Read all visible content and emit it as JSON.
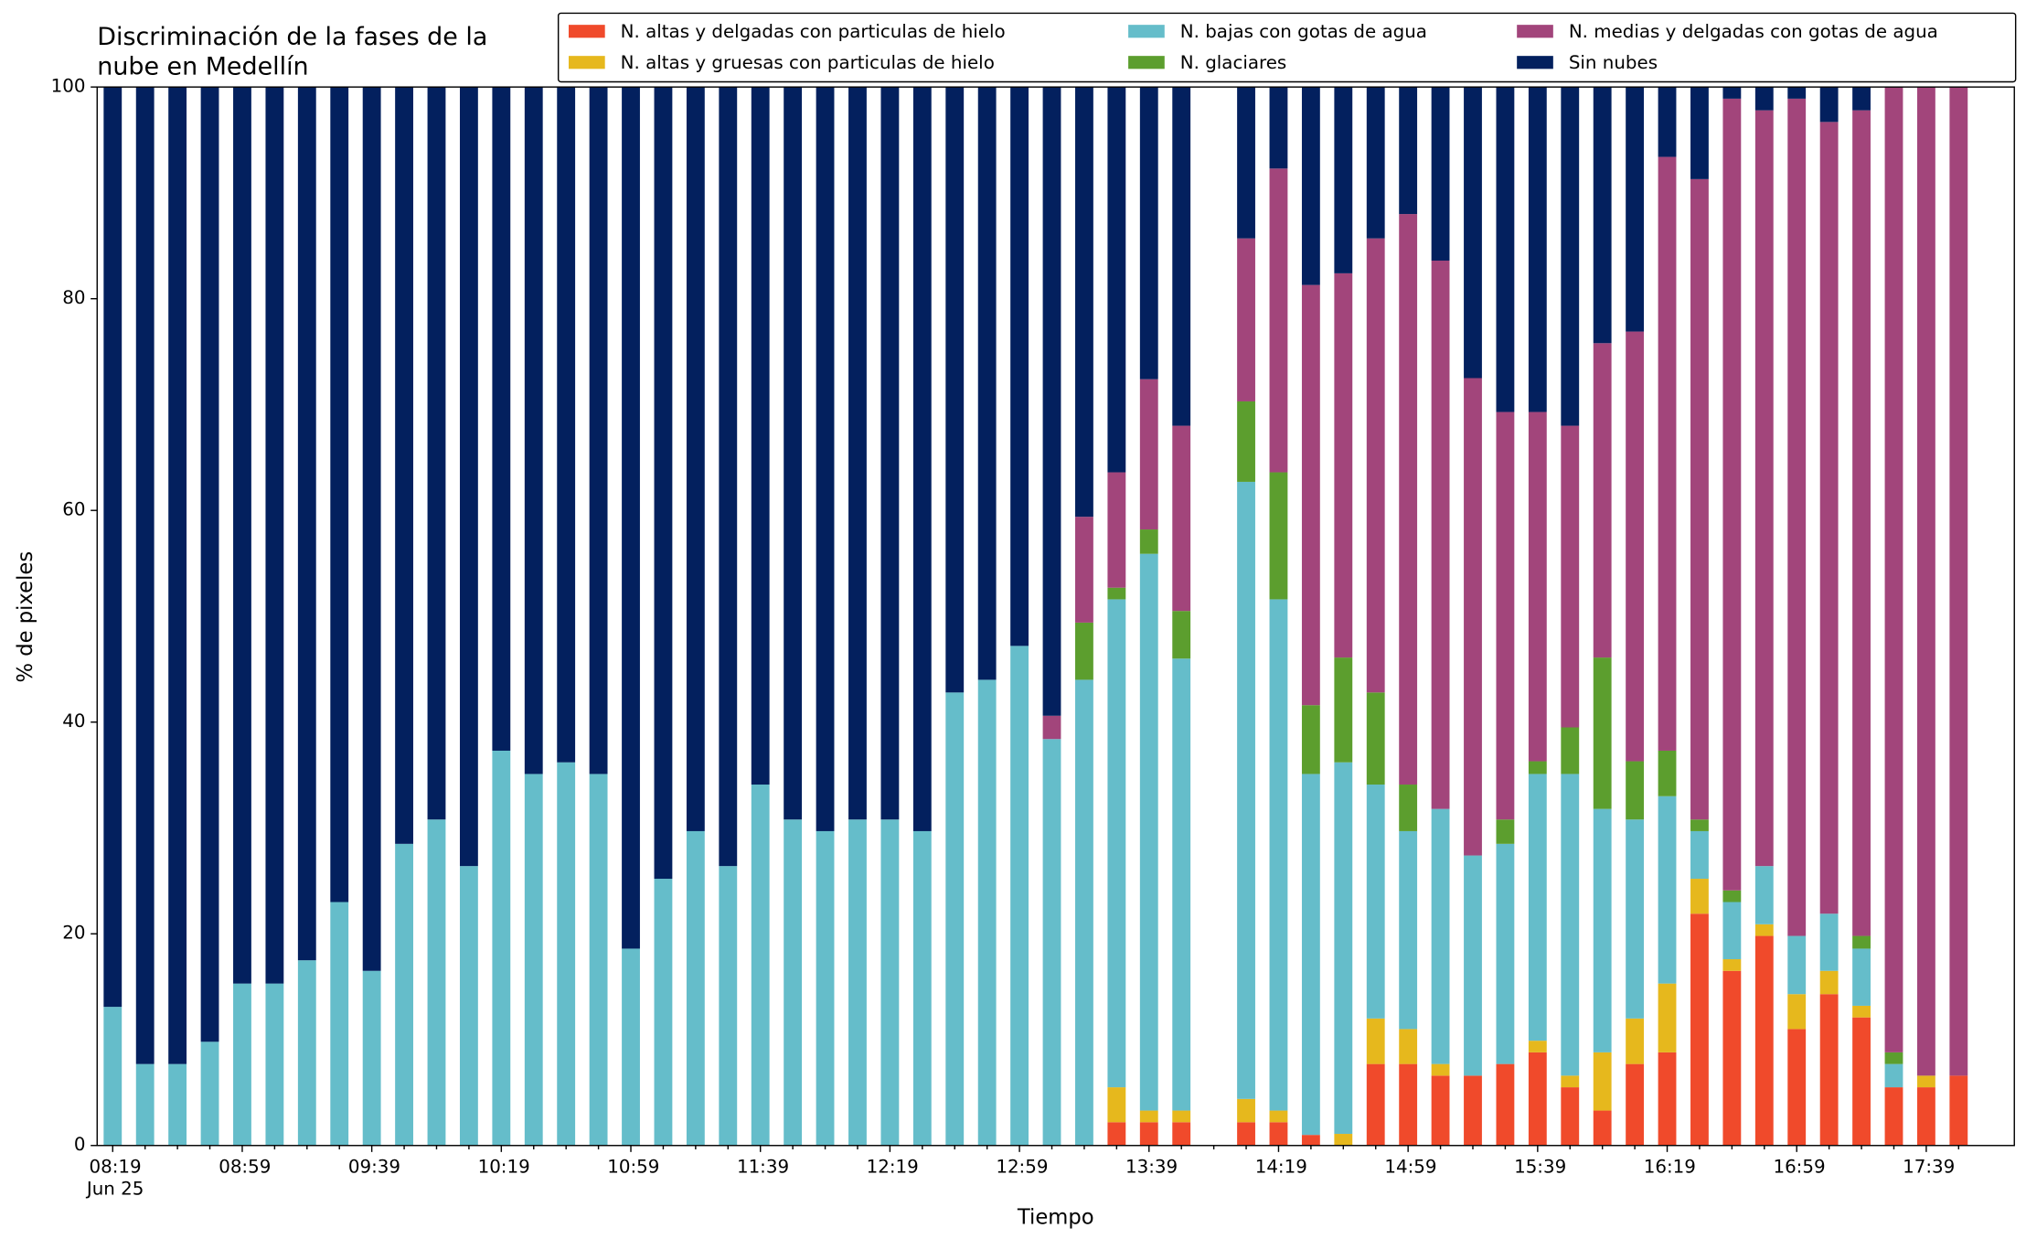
{
  "chart_data": {
    "type": "stacked_bar",
    "title": [
      "Discriminación de la fases de la",
      "nube en Medellín"
    ],
    "xlabel": "Tiempo",
    "ylabel": "% de pixeles",
    "x_date_label": "Jun 25",
    "categories": [
      "08:19",
      null,
      null,
      null,
      "08:59",
      null,
      null,
      null,
      "09:39",
      null,
      null,
      null,
      "10:19",
      null,
      null,
      null,
      "10:59",
      null,
      null,
      null,
      "11:39",
      null,
      null,
      null,
      "12:19",
      null,
      null,
      null,
      "12:59",
      null,
      null,
      null,
      "13:39",
      null,
      null,
      null,
      "14:19",
      null,
      null,
      null,
      "14:59",
      null,
      null,
      null,
      "15:39",
      null,
      null,
      null,
      "16:19",
      null,
      null,
      null,
      "16:59",
      null,
      null,
      null,
      "17:39",
      null
    ],
    "ylim": [
      0,
      100
    ],
    "yticks": [
      0,
      20,
      40,
      60,
      80,
      100
    ],
    "legend": "upper right",
    "series": [
      {
        "name": "N. altas y delgadas con particulas de hielo",
        "color": "#f04a2b",
        "values": [
          0,
          0,
          0,
          0,
          0,
          0,
          0,
          0,
          0,
          0,
          0,
          0,
          0,
          0,
          0,
          0,
          0,
          0,
          0,
          0,
          0,
          0,
          0,
          0,
          0,
          0,
          0,
          0,
          0,
          0,
          0,
          2.2,
          2.2,
          2.2,
          null,
          2.2,
          2.2,
          1.0,
          0,
          7.7,
          7.7,
          6.6,
          6.6,
          7.7,
          8.8,
          5.5,
          3.3,
          7.7,
          8.8,
          21.9,
          16.5,
          19.8,
          11.0,
          14.3,
          12.1,
          5.5,
          5.5,
          6.6
        ]
      },
      {
        "name": "N. altas y gruesas con particulas de hielo",
        "color": "#e6b81d",
        "values": [
          0,
          0,
          0,
          0,
          0,
          0,
          0,
          0,
          0,
          0,
          0,
          0,
          0,
          0,
          0,
          0,
          0,
          0,
          0,
          0,
          0,
          0,
          0,
          0,
          0,
          0,
          0,
          0,
          0,
          0,
          0,
          3.3,
          1.1,
          1.1,
          null,
          2.2,
          1.1,
          0,
          1.1,
          4.3,
          3.3,
          1.1,
          0,
          0,
          1.1,
          1.1,
          5.5,
          4.3,
          6.5,
          3.3,
          1.1,
          1.1,
          3.3,
          2.2,
          1.1,
          0,
          1.1,
          0
        ]
      },
      {
        "name": "N. bajas con gotas de agua",
        "color": "#65bdca",
        "values": [
          13.1,
          7.7,
          7.7,
          9.8,
          15.3,
          15.3,
          17.5,
          23.0,
          16.5,
          28.5,
          30.8,
          26.4,
          37.3,
          35.1,
          36.2,
          35.1,
          18.6,
          25.2,
          29.7,
          26.4,
          34.1,
          30.8,
          29.7,
          30.8,
          30.8,
          29.7,
          42.8,
          44.0,
          47.2,
          38.4,
          44.0,
          46.1,
          52.6,
          42.7,
          null,
          58.3,
          48.3,
          34.1,
          35.1,
          22.1,
          18.7,
          24.1,
          20.8,
          20.8,
          25.2,
          28.5,
          23.0,
          18.8,
          17.7,
          4.5,
          5.4,
          5.5,
          5.5,
          5.4,
          5.4,
          2.2,
          0,
          0
        ]
      },
      {
        "name": "N. glaciares",
        "color": "#5c9e2e",
        "values": [
          0,
          0,
          0,
          0,
          0,
          0,
          0,
          0,
          0,
          0,
          0,
          0,
          0,
          0,
          0,
          0,
          0,
          0,
          0,
          0,
          0,
          0,
          0,
          0,
          0,
          0,
          0,
          0,
          0,
          0,
          5.4,
          1.1,
          2.3,
          4.5,
          null,
          7.6,
          12.0,
          6.5,
          9.9,
          8.7,
          4.4,
          0,
          0,
          2.3,
          1.2,
          4.4,
          14.3,
          5.5,
          4.3,
          1.1,
          1.1,
          0,
          0,
          0,
          1.2,
          1.1,
          0,
          0
        ]
      },
      {
        "name": "N. medias y delgadas con gotas de agua",
        "color": "#a2457b",
        "values": [
          0,
          0,
          0,
          0,
          0,
          0,
          0,
          0,
          0,
          0,
          0,
          0,
          0,
          0,
          0,
          0,
          0,
          0,
          0,
          0,
          0,
          0,
          0,
          0,
          0,
          0,
          0,
          0,
          0,
          2.2,
          10.0,
          10.9,
          14.2,
          17.5,
          null,
          15.4,
          28.7,
          39.7,
          36.3,
          42.9,
          53.9,
          51.8,
          45.1,
          38.5,
          33.0,
          28.5,
          29.7,
          40.6,
          56.1,
          60.5,
          74.8,
          71.4,
          79.1,
          74.8,
          78.0,
          91.2,
          93.4,
          93.4
        ]
      },
      {
        "name": "Sin nubes",
        "color": "#03205e",
        "values": [
          86.9,
          92.3,
          92.3,
          90.2,
          84.7,
          84.7,
          82.5,
          77.0,
          83.5,
          71.5,
          69.2,
          73.6,
          62.7,
          64.9,
          63.8,
          64.9,
          81.4,
          74.8,
          70.3,
          73.6,
          65.9,
          69.2,
          70.3,
          69.2,
          69.2,
          70.3,
          57.2,
          56.0,
          52.8,
          59.4,
          40.6,
          36.4,
          27.6,
          32.0,
          null,
          14.3,
          7.7,
          18.7,
          17.6,
          14.3,
          12.0,
          16.4,
          27.5,
          30.7,
          30.7,
          32.0,
          24.2,
          23.1,
          6.6,
          8.7,
          1.1,
          2.2,
          1.1,
          3.3,
          2.2,
          0,
          0,
          0
        ]
      }
    ]
  }
}
